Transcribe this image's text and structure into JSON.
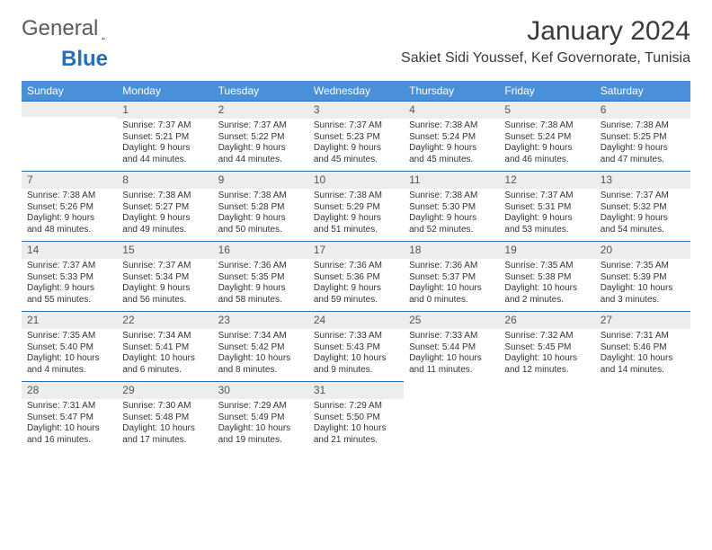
{
  "logo": {
    "part1": "General",
    "part2": "Blue"
  },
  "header": {
    "month_title": "January 2024",
    "location": "Sakiet Sidi Youssef, Kef Governorate, Tunisia"
  },
  "colors": {
    "header_bg": "#4a90d9",
    "header_text": "#ffffff",
    "daynum_bg": "#ededed",
    "daynum_border": "#2a6db8",
    "text": "#333333",
    "logo_gray": "#5a5a5a",
    "logo_blue": "#2a6db8"
  },
  "weekdays": [
    "Sunday",
    "Monday",
    "Tuesday",
    "Wednesday",
    "Thursday",
    "Friday",
    "Saturday"
  ],
  "leading_blanks": 0,
  "days": [
    {
      "n": "",
      "sunrise": "",
      "sunset": "",
      "daylight": ""
    },
    {
      "n": "1",
      "sunrise": "Sunrise: 7:37 AM",
      "sunset": "Sunset: 5:21 PM",
      "daylight": "Daylight: 9 hours and 44 minutes."
    },
    {
      "n": "2",
      "sunrise": "Sunrise: 7:37 AM",
      "sunset": "Sunset: 5:22 PM",
      "daylight": "Daylight: 9 hours and 44 minutes."
    },
    {
      "n": "3",
      "sunrise": "Sunrise: 7:37 AM",
      "sunset": "Sunset: 5:23 PM",
      "daylight": "Daylight: 9 hours and 45 minutes."
    },
    {
      "n": "4",
      "sunrise": "Sunrise: 7:38 AM",
      "sunset": "Sunset: 5:24 PM",
      "daylight": "Daylight: 9 hours and 45 minutes."
    },
    {
      "n": "5",
      "sunrise": "Sunrise: 7:38 AM",
      "sunset": "Sunset: 5:24 PM",
      "daylight": "Daylight: 9 hours and 46 minutes."
    },
    {
      "n": "6",
      "sunrise": "Sunrise: 7:38 AM",
      "sunset": "Sunset: 5:25 PM",
      "daylight": "Daylight: 9 hours and 47 minutes."
    },
    {
      "n": "7",
      "sunrise": "Sunrise: 7:38 AM",
      "sunset": "Sunset: 5:26 PM",
      "daylight": "Daylight: 9 hours and 48 minutes."
    },
    {
      "n": "8",
      "sunrise": "Sunrise: 7:38 AM",
      "sunset": "Sunset: 5:27 PM",
      "daylight": "Daylight: 9 hours and 49 minutes."
    },
    {
      "n": "9",
      "sunrise": "Sunrise: 7:38 AM",
      "sunset": "Sunset: 5:28 PM",
      "daylight": "Daylight: 9 hours and 50 minutes."
    },
    {
      "n": "10",
      "sunrise": "Sunrise: 7:38 AM",
      "sunset": "Sunset: 5:29 PM",
      "daylight": "Daylight: 9 hours and 51 minutes."
    },
    {
      "n": "11",
      "sunrise": "Sunrise: 7:38 AM",
      "sunset": "Sunset: 5:30 PM",
      "daylight": "Daylight: 9 hours and 52 minutes."
    },
    {
      "n": "12",
      "sunrise": "Sunrise: 7:37 AM",
      "sunset": "Sunset: 5:31 PM",
      "daylight": "Daylight: 9 hours and 53 minutes."
    },
    {
      "n": "13",
      "sunrise": "Sunrise: 7:37 AM",
      "sunset": "Sunset: 5:32 PM",
      "daylight": "Daylight: 9 hours and 54 minutes."
    },
    {
      "n": "14",
      "sunrise": "Sunrise: 7:37 AM",
      "sunset": "Sunset: 5:33 PM",
      "daylight": "Daylight: 9 hours and 55 minutes."
    },
    {
      "n": "15",
      "sunrise": "Sunrise: 7:37 AM",
      "sunset": "Sunset: 5:34 PM",
      "daylight": "Daylight: 9 hours and 56 minutes."
    },
    {
      "n": "16",
      "sunrise": "Sunrise: 7:36 AM",
      "sunset": "Sunset: 5:35 PM",
      "daylight": "Daylight: 9 hours and 58 minutes."
    },
    {
      "n": "17",
      "sunrise": "Sunrise: 7:36 AM",
      "sunset": "Sunset: 5:36 PM",
      "daylight": "Daylight: 9 hours and 59 minutes."
    },
    {
      "n": "18",
      "sunrise": "Sunrise: 7:36 AM",
      "sunset": "Sunset: 5:37 PM",
      "daylight": "Daylight: 10 hours and 0 minutes."
    },
    {
      "n": "19",
      "sunrise": "Sunrise: 7:35 AM",
      "sunset": "Sunset: 5:38 PM",
      "daylight": "Daylight: 10 hours and 2 minutes."
    },
    {
      "n": "20",
      "sunrise": "Sunrise: 7:35 AM",
      "sunset": "Sunset: 5:39 PM",
      "daylight": "Daylight: 10 hours and 3 minutes."
    },
    {
      "n": "21",
      "sunrise": "Sunrise: 7:35 AM",
      "sunset": "Sunset: 5:40 PM",
      "daylight": "Daylight: 10 hours and 4 minutes."
    },
    {
      "n": "22",
      "sunrise": "Sunrise: 7:34 AM",
      "sunset": "Sunset: 5:41 PM",
      "daylight": "Daylight: 10 hours and 6 minutes."
    },
    {
      "n": "23",
      "sunrise": "Sunrise: 7:34 AM",
      "sunset": "Sunset: 5:42 PM",
      "daylight": "Daylight: 10 hours and 8 minutes."
    },
    {
      "n": "24",
      "sunrise": "Sunrise: 7:33 AM",
      "sunset": "Sunset: 5:43 PM",
      "daylight": "Daylight: 10 hours and 9 minutes."
    },
    {
      "n": "25",
      "sunrise": "Sunrise: 7:33 AM",
      "sunset": "Sunset: 5:44 PM",
      "daylight": "Daylight: 10 hours and 11 minutes."
    },
    {
      "n": "26",
      "sunrise": "Sunrise: 7:32 AM",
      "sunset": "Sunset: 5:45 PM",
      "daylight": "Daylight: 10 hours and 12 minutes."
    },
    {
      "n": "27",
      "sunrise": "Sunrise: 7:31 AM",
      "sunset": "Sunset: 5:46 PM",
      "daylight": "Daylight: 10 hours and 14 minutes."
    },
    {
      "n": "28",
      "sunrise": "Sunrise: 7:31 AM",
      "sunset": "Sunset: 5:47 PM",
      "daylight": "Daylight: 10 hours and 16 minutes."
    },
    {
      "n": "29",
      "sunrise": "Sunrise: 7:30 AM",
      "sunset": "Sunset: 5:48 PM",
      "daylight": "Daylight: 10 hours and 17 minutes."
    },
    {
      "n": "30",
      "sunrise": "Sunrise: 7:29 AM",
      "sunset": "Sunset: 5:49 PM",
      "daylight": "Daylight: 10 hours and 19 minutes."
    },
    {
      "n": "31",
      "sunrise": "Sunrise: 7:29 AM",
      "sunset": "Sunset: 5:50 PM",
      "daylight": "Daylight: 10 hours and 21 minutes."
    }
  ]
}
